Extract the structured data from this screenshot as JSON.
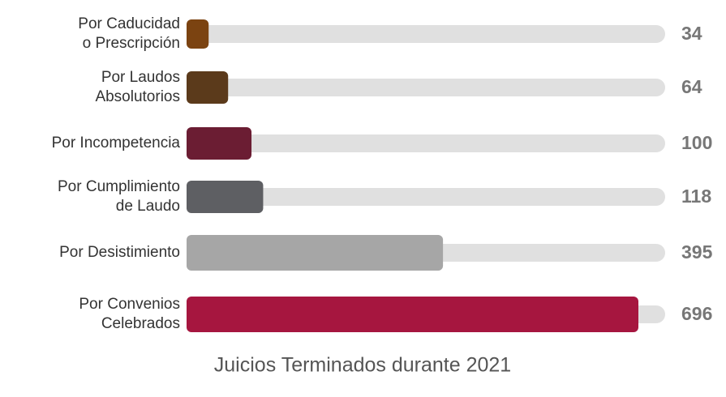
{
  "chart_data": {
    "type": "bar",
    "orientation": "horizontal",
    "title": "Juicios Terminados durante  2021",
    "categories": [
      "Por Caducidad\no Prescripción",
      "Por Laudos\nAbsolutorios",
      "Por  Incompetencia",
      "Por Cumplimiento\nde Laudo",
      "Por  Desistimiento",
      "Por Convenios\nCelebrados"
    ],
    "values": [
      34,
      64,
      100,
      118,
      395,
      696
    ],
    "colors": [
      "#7b4311",
      "#5b3a1b",
      "#6b1d33",
      "#5e5f63",
      "#a6a6a6",
      "#a6163f"
    ],
    "track_color": "#e0e0e0"
  }
}
